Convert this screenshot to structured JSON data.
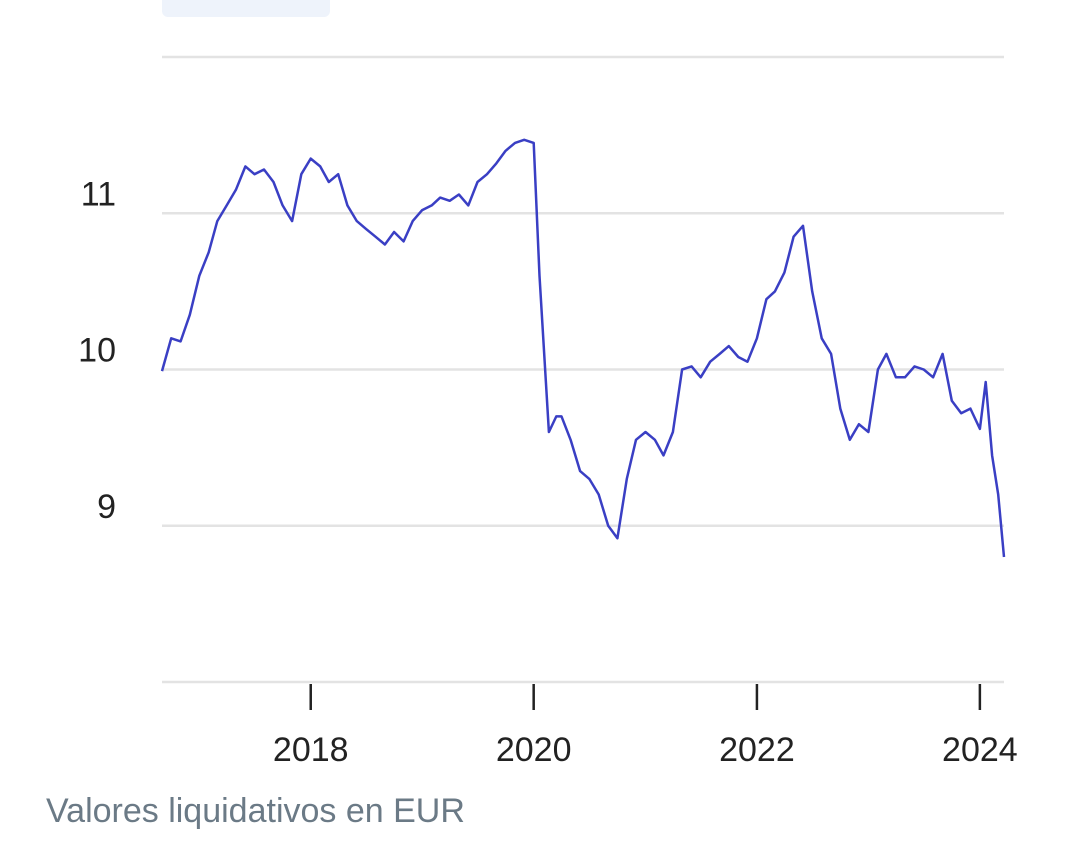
{
  "colors": {
    "line": "#3a3fc4",
    "grid": "#e3e3e3",
    "axis": "#222222",
    "caption": "#6b7a86",
    "chip": "#eef3fb"
  },
  "caption": "Valores liquidativos en EUR",
  "chart_data": {
    "type": "line",
    "title": "",
    "xlabel": "",
    "ylabel": "",
    "grid": true,
    "legend": "none",
    "xlim": [
      "2016-09-01",
      "2024-03-20"
    ],
    "ylim": [
      8,
      12
    ],
    "y_ticks": [
      9,
      10,
      11
    ],
    "y_tick_labels": [
      "9",
      "10",
      "11"
    ],
    "x_ticks": [
      "2018-01-01",
      "2020-01-01",
      "2022-01-01",
      "2024-01-01"
    ],
    "x_tick_labels": [
      "2018",
      "2020",
      "2022",
      "2024"
    ],
    "series": [
      {
        "name": "",
        "x": [
          "2016-09-01",
          "2016-10-01",
          "2016-11-01",
          "2016-12-01",
          "2017-01-01",
          "2017-02-01",
          "2017-03-01",
          "2017-04-01",
          "2017-05-01",
          "2017-06-01",
          "2017-07-01",
          "2017-08-01",
          "2017-09-01",
          "2017-10-01",
          "2017-11-01",
          "2017-12-01",
          "2018-01-01",
          "2018-02-01",
          "2018-03-01",
          "2018-04-01",
          "2018-05-01",
          "2018-06-01",
          "2018-07-01",
          "2018-08-01",
          "2018-09-01",
          "2018-10-01",
          "2018-11-01",
          "2018-12-01",
          "2019-01-01",
          "2019-02-01",
          "2019-03-01",
          "2019-04-01",
          "2019-05-01",
          "2019-06-01",
          "2019-07-01",
          "2019-08-01",
          "2019-09-01",
          "2019-10-01",
          "2019-11-01",
          "2019-12-01",
          "2020-01-01",
          "2020-01-20",
          "2020-02-20",
          "2020-03-15",
          "2020-04-01",
          "2020-05-01",
          "2020-06-01",
          "2020-07-01",
          "2020-08-01",
          "2020-09-01",
          "2020-10-01",
          "2020-11-01",
          "2020-12-01",
          "2021-01-01",
          "2021-02-01",
          "2021-03-01",
          "2021-04-01",
          "2021-05-01",
          "2021-06-01",
          "2021-07-01",
          "2021-08-01",
          "2021-09-01",
          "2021-10-01",
          "2021-11-01",
          "2021-12-01",
          "2022-01-01",
          "2022-02-01",
          "2022-03-01",
          "2022-04-01",
          "2022-05-01",
          "2022-06-01",
          "2022-07-01",
          "2022-08-01",
          "2022-09-01",
          "2022-10-01",
          "2022-11-01",
          "2022-12-01",
          "2023-01-01",
          "2023-02-01",
          "2023-03-01",
          "2023-04-01",
          "2023-05-01",
          "2023-06-01",
          "2023-07-01",
          "2023-08-01",
          "2023-09-01",
          "2023-10-01",
          "2023-11-01",
          "2023-12-01",
          "2024-01-01",
          "2024-01-20",
          "2024-02-10",
          "2024-03-01",
          "2024-03-20"
        ],
        "values": [
          9.99,
          10.2,
          10.18,
          10.35,
          10.6,
          10.75,
          10.95,
          11.05,
          11.15,
          11.3,
          11.25,
          11.28,
          11.2,
          11.05,
          10.95,
          11.25,
          11.35,
          11.3,
          11.2,
          11.25,
          11.05,
          10.95,
          10.9,
          10.85,
          10.8,
          10.88,
          10.82,
          10.95,
          11.02,
          11.05,
          11.1,
          11.08,
          11.12,
          11.05,
          11.2,
          11.25,
          11.32,
          11.4,
          11.45,
          11.47,
          11.45,
          10.6,
          9.6,
          9.7,
          9.7,
          9.55,
          9.35,
          9.3,
          9.2,
          9.0,
          8.92,
          9.3,
          9.55,
          9.6,
          9.55,
          9.45,
          9.6,
          10.0,
          10.02,
          9.95,
          10.05,
          10.1,
          10.15,
          10.08,
          10.05,
          10.2,
          10.45,
          10.5,
          10.62,
          10.85,
          10.92,
          10.5,
          10.2,
          10.1,
          9.75,
          9.55,
          9.65,
          9.6,
          10.0,
          10.1,
          9.95,
          9.95,
          10.02,
          10.0,
          9.95,
          10.1,
          9.8,
          9.72,
          9.75,
          9.62,
          9.92,
          9.45,
          9.2,
          8.8
        ]
      }
    ]
  }
}
